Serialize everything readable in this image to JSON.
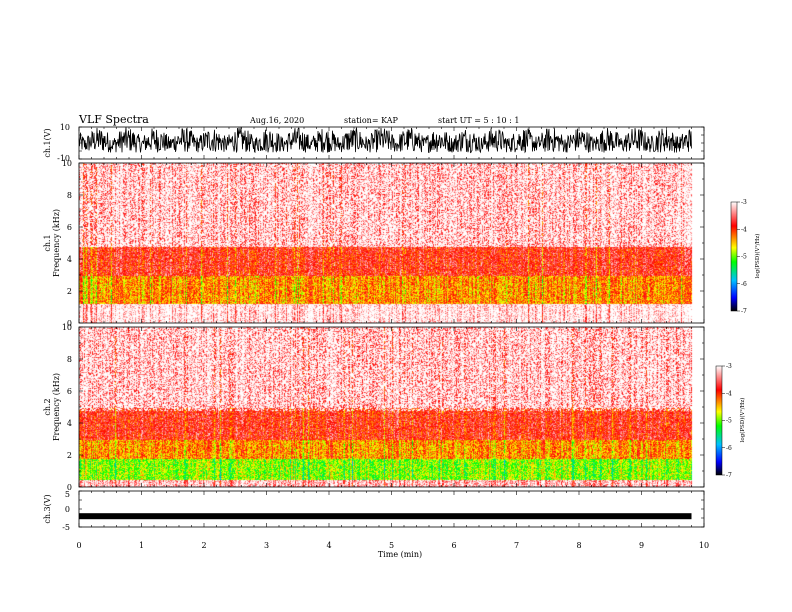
{
  "header": {
    "title": "VLF Spectra",
    "date": "Aug.16, 2020",
    "station": "station= KAP",
    "start": "start  UT =   5 : 10 : 1"
  },
  "colors": {
    "colormap": [
      "#000000",
      "#0000ff",
      "#00c0ff",
      "#00ff00",
      "#ffff00",
      "#ff0000",
      "#ffffff"
    ],
    "waveform": "#000000"
  },
  "colorbar": {
    "label": "log(PSD)(V²/Hz)",
    "ticks": [
      "-3",
      "-4",
      "-5",
      "-6",
      "-7"
    ]
  },
  "chart_data": [
    {
      "type": "line",
      "panel": "ch.1 waveform",
      "ylabel": "ch.1(V)",
      "ylim": [
        -10,
        10
      ],
      "yticks": [
        "10",
        "-10"
      ],
      "xlim": [
        0,
        10
      ],
      "x_data_end": 9.8,
      "envelope_min_approx": -6,
      "envelope_max_approx": 10,
      "note": "dense oscillating signal spanning most of the range"
    },
    {
      "type": "heatmap",
      "panel": "ch.1 spectrogram",
      "ylabel": "ch.1\nFrequency (kHz)",
      "ylim": [
        0,
        10
      ],
      "yticks": [
        "0",
        "2",
        "4",
        "6",
        "8",
        "10"
      ],
      "xlim": [
        0,
        10
      ],
      "colorscale_range": [
        -7,
        -3
      ],
      "bands_kHz": [
        {
          "from": 0,
          "to": 1.2,
          "level": -3.0
        },
        {
          "from": 1.2,
          "to": 3.0,
          "level": -4.3
        },
        {
          "from": 3.0,
          "to": 4.8,
          "level": -3.8
        },
        {
          "from": 4.8,
          "to": 10,
          "level": -3.3
        }
      ]
    },
    {
      "type": "heatmap",
      "panel": "ch.2 spectrogram",
      "ylabel": "ch.2\nFrequency (kHz)",
      "ylim": [
        0,
        10
      ],
      "yticks": [
        "0",
        "2",
        "4",
        "6",
        "8",
        "10"
      ],
      "xlim": [
        0,
        10
      ],
      "colorscale_range": [
        -7,
        -3
      ],
      "bands_kHz": [
        {
          "from": 0,
          "to": 0.5,
          "level": -3.2
        },
        {
          "from": 0.5,
          "to": 1.8,
          "level": -4.9
        },
        {
          "from": 1.8,
          "to": 3.0,
          "level": -4.3
        },
        {
          "from": 3.0,
          "to": 5.0,
          "level": -3.8
        },
        {
          "from": 5.0,
          "to": 10,
          "level": -3.3
        }
      ]
    },
    {
      "type": "line",
      "panel": "ch.3 waveform",
      "ylabel": "ch.3(V)",
      "ylim": [
        -5,
        5
      ],
      "yticks": [
        "5",
        "0",
        "-5"
      ],
      "xlim": [
        0,
        10
      ],
      "x_data_end": 9.8,
      "baseline_approx": -2,
      "note": "thick near-constant trace"
    }
  ],
  "xaxis": {
    "label": "Time (min)",
    "ticks": [
      "0",
      "1",
      "2",
      "3",
      "4",
      "5",
      "6",
      "7",
      "8",
      "9",
      "10"
    ],
    "range": [
      0,
      10
    ]
  }
}
